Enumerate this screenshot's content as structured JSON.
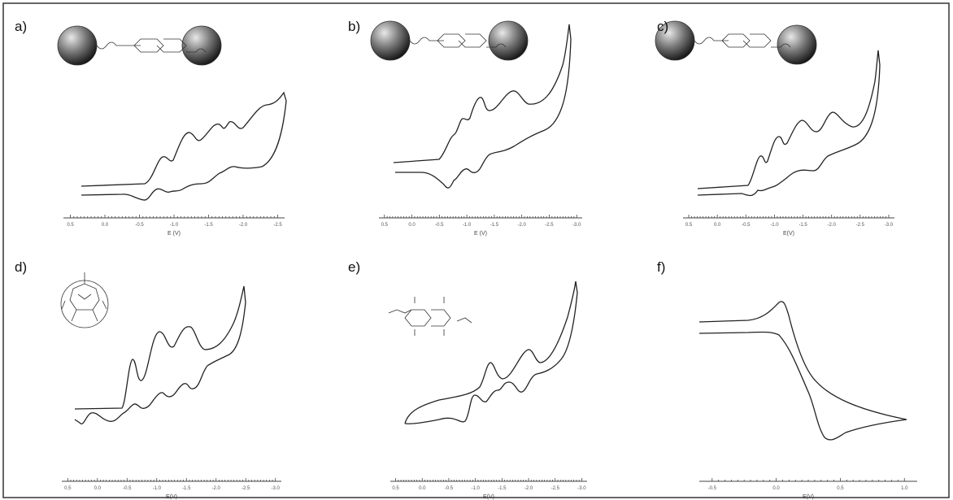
{
  "panels": [
    {
      "label": "a)",
      "x_label": "E (V)",
      "xticks": [
        "0.5",
        "0.0",
        "-0.5",
        "-1.0",
        "-1.5",
        "-2.0",
        "-2.5"
      ]
    },
    {
      "label": "b)",
      "x_label": "E (V)",
      "xticks": [
        "0.5",
        "0.0",
        "-0.5",
        "-1.0",
        "-1.5",
        "-2.0",
        "-2.5",
        "-3.0"
      ]
    },
    {
      "label": "c)",
      "x_label": "E(V)",
      "xticks": [
        "0.5",
        "0.0",
        "-0.5",
        "-1.0",
        "-1.5",
        "-2.0",
        "-2.5",
        "-3.0"
      ]
    },
    {
      "label": "d)",
      "x_label": "E(V)",
      "xticks": [
        "0.5",
        "0.0",
        "-0.5",
        "-1.0",
        "-1.5",
        "-2.0",
        "-2.5",
        "-3.0"
      ]
    },
    {
      "label": "e)",
      "x_label": "E(V)",
      "xticks": [
        "0.5",
        "0.0",
        "-0.5",
        "-1.0",
        "-1.5",
        "-2.0",
        "-2.5",
        "-3.0"
      ]
    },
    {
      "label": "f)",
      "x_label": "E(V)",
      "xticks": [
        "-0.5",
        "0.0",
        "0.5",
        "1.0"
      ]
    }
  ]
}
